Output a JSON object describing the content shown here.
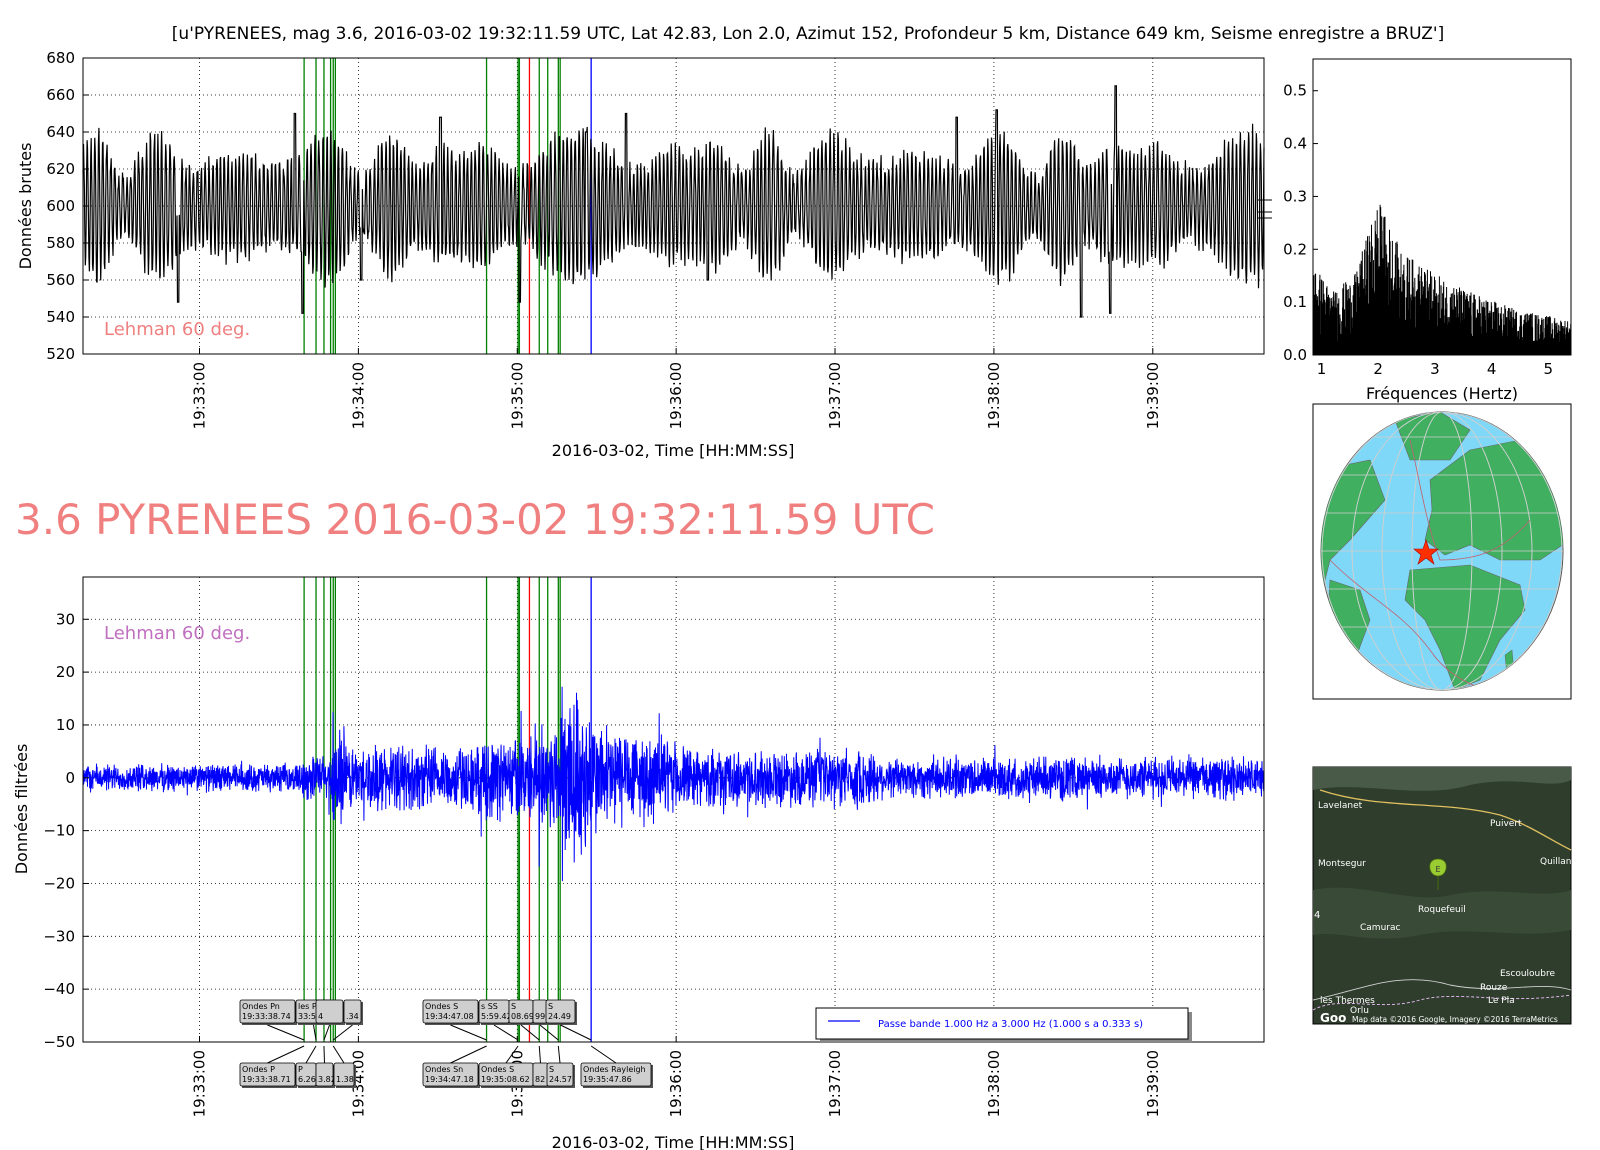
{
  "header": {
    "title": "[u'PYRENEES, mag 3.6, 2016-03-02 19:32:11.59 UTC, Lat 42.83, Lon 2.0, Azimut 152, Profondeur 5 km, Distance   649 km, Seisme enregistre a BRUZ']",
    "big_title": "3.6 PYRENEES 2016-03-02 19:32:11.59 UTC"
  },
  "colors": {
    "raw_trace": "#000000",
    "filtered_trace": "#0000ff",
    "pick_lines": "#008000",
    "red_line": "#ff0000",
    "blue_line": "#0000ff",
    "big_title": "#f08080",
    "lehman_raw": "#f08080",
    "lehman_filtered": "#c070c0",
    "globe_ocean": "#80d8f8",
    "globe_land": "#40b060"
  },
  "time_axis": {
    "start_sec": 0,
    "end_sec": 446,
    "tick_labels": [
      "19:33:00",
      "19:34:00",
      "19:35:00",
      "19:36:00",
      "19:37:00",
      "19:38:00",
      "19:39:00"
    ],
    "tick_secs": [
      44,
      104,
      164,
      224,
      284,
      344,
      404
    ],
    "xlabel": "2016-03-02, Time [HH:MM:SS]"
  },
  "pick_lines_sec": [
    83.5,
    88,
    91,
    93.5,
    94.5,
    95.3,
    152.4,
    164.3,
    164.8,
    172.3,
    175.5,
    179.5,
    180.2
  ],
  "red_line_sec": 168.6,
  "blue_line_sec": 191.9,
  "chart_data": [
    {
      "type": "line",
      "name": "raw",
      "ylabel": "Données brutes",
      "ylim": [
        520,
        680
      ],
      "yticks": [
        "520",
        "540",
        "560",
        "580",
        "600",
        "620",
        "640",
        "660",
        "680"
      ],
      "annotation": "Lehman 60 deg.",
      "baseline": 600,
      "noise_amplitude": 28,
      "peaks": [
        {
          "t": 36,
          "y": 548
        },
        {
          "t": 80,
          "y": 650
        },
        {
          "t": 83,
          "y": 542
        },
        {
          "t": 105,
          "y": 560
        },
        {
          "t": 135,
          "y": 648
        },
        {
          "t": 165,
          "y": 548
        },
        {
          "t": 190,
          "y": 640
        },
        {
          "t": 205,
          "y": 650
        },
        {
          "t": 236,
          "y": 560
        },
        {
          "t": 330,
          "y": 648
        },
        {
          "t": 345,
          "y": 652
        },
        {
          "t": 377,
          "y": 540
        },
        {
          "t": 390,
          "y": 665
        },
        {
          "t": 388,
          "y": 542
        }
      ]
    },
    {
      "type": "bar",
      "name": "spectrum",
      "xlabel": "Fréquences (Hertz)",
      "xlim": [
        0.85,
        5.4
      ],
      "ylim": [
        0,
        0.56
      ],
      "xticks": [
        "1",
        "2",
        "3",
        "4",
        "5"
      ],
      "yticks": [
        "0.0",
        "0.1",
        "0.2",
        "0.3",
        "0.4",
        "0.5"
      ],
      "envelope": [
        {
          "f": 0.85,
          "a": 0.16
        },
        {
          "f": 1.2,
          "a": 0.11
        },
        {
          "f": 1.6,
          "a": 0.14
        },
        {
          "f": 2.0,
          "a": 0.27
        },
        {
          "f": 2.4,
          "a": 0.18
        },
        {
          "f": 3.0,
          "a": 0.14
        },
        {
          "f": 3.6,
          "a": 0.11
        },
        {
          "f": 4.4,
          "a": 0.08
        },
        {
          "f": 5.4,
          "a": 0.06
        }
      ]
    },
    {
      "type": "line",
      "name": "filtered",
      "ylabel": "Données filtrées",
      "ylim": [
        -50,
        38
      ],
      "yticks": [
        "30",
        "20",
        "10",
        "0",
        "−10",
        "−20",
        "−30",
        "−40",
        "−50"
      ],
      "ytick_values": [
        30,
        20,
        10,
        0,
        -10,
        -20,
        -30,
        -40,
        -50
      ],
      "annotation": "Lehman 60 deg.",
      "legend": "Passe bande 1.000 Hz a 3.000 Hz (1.000 s a 0.333 s)",
      "segments": [
        {
          "from": 0,
          "to": 83,
          "amp": 3
        },
        {
          "from": 83,
          "to": 94,
          "amp": 5
        },
        {
          "from": 94,
          "to": 100,
          "amp": 11
        },
        {
          "from": 100,
          "to": 152,
          "amp": 7
        },
        {
          "from": 152,
          "to": 172,
          "amp": 9
        },
        {
          "from": 172,
          "to": 180,
          "amp": 12
        },
        {
          "from": 180,
          "to": 192,
          "amp": 24
        },
        {
          "from": 192,
          "to": 230,
          "amp": 13
        },
        {
          "from": 230,
          "to": 300,
          "amp": 6
        },
        {
          "from": 300,
          "to": 446,
          "amp": 4.5
        }
      ]
    }
  ],
  "phase_labels_top": [
    {
      "name": "Ondes Pn",
      "time": "19:33:38.74"
    },
    {
      "name": "les P",
      "time": "33:53.78"
    },
    {
      "name": "",
      "time": "4"
    },
    {
      "name": "",
      "time": ".34"
    },
    {
      "name": "Ondes S",
      "time": "19:34:47.08"
    },
    {
      "name": "s SS",
      "time": "5:59.42"
    },
    {
      "name": "S",
      "time": "08.69"
    },
    {
      "name": "",
      "time": "99"
    },
    {
      "name": "S",
      "time": "24.49"
    }
  ],
  "phase_labels_bottom": [
    {
      "name": "Ondes P",
      "time": "19:33:38.71"
    },
    {
      "name": "P",
      "time": "6.26"
    },
    {
      "name": "",
      "time": "3.82"
    },
    {
      "name": "",
      "time": "1.38"
    },
    {
      "name": "Ondes Sn",
      "time": "19:34:47.18"
    },
    {
      "name": "Ondes S",
      "time": "19:35:08.62"
    },
    {
      "name": "",
      "time": "82"
    },
    {
      "name": "S",
      "time": "24.57"
    },
    {
      "name": "Ondes Rayleigh",
      "time": "19:35:47.86"
    }
  ],
  "map": {
    "places": [
      "Lavelanet",
      "Puivert",
      "Montsegur",
      "Quillan",
      "Roquefeuil",
      "Camurac",
      "Escouloubre",
      "Rouze",
      "Le Pla",
      "les Thermes",
      "Orlu"
    ],
    "marker": "E",
    "logo": "Goo",
    "attribution": "Map data ©2016 Google, Imagery ©2016 TerraMetrics",
    "left_mark": "4"
  }
}
